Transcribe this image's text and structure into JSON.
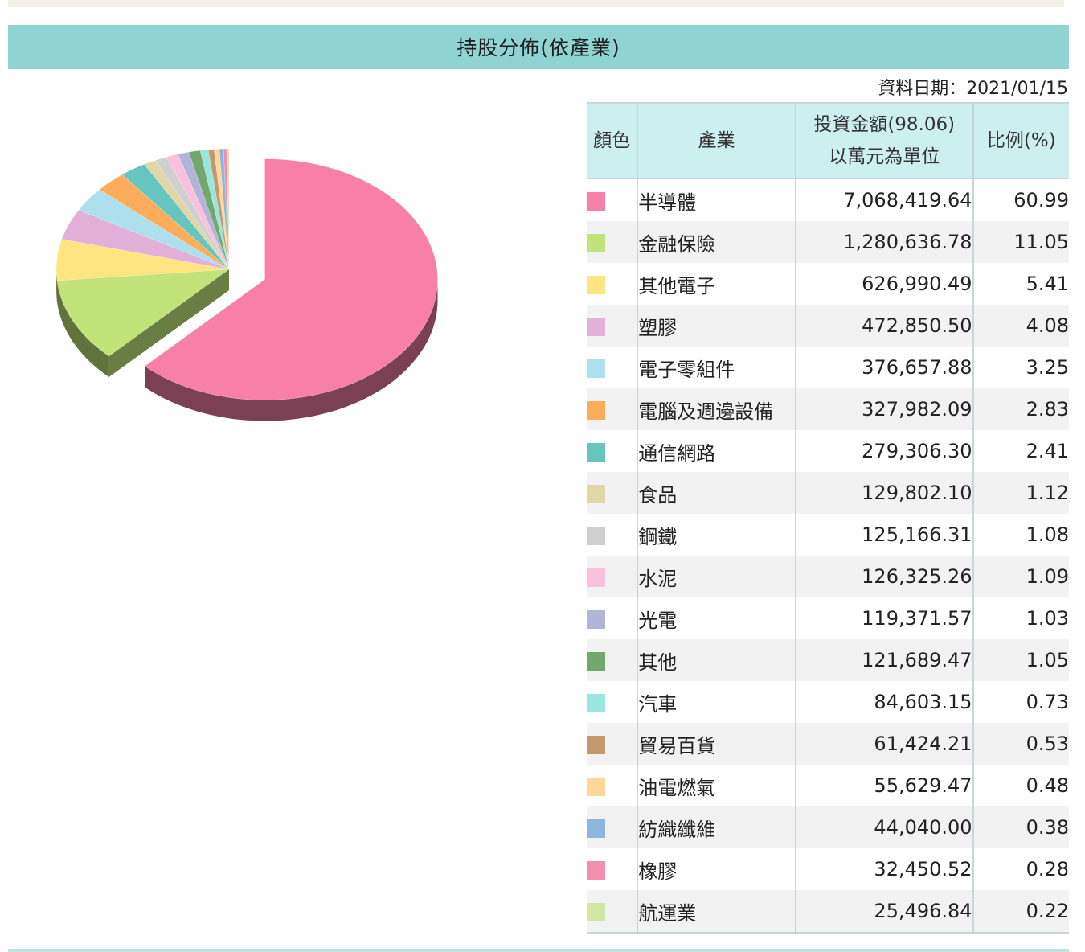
{
  "header": {
    "title": "持股分佈(依產業)"
  },
  "data_date": "資料日期：2021/01/15",
  "table": {
    "headers": {
      "color": "顏色",
      "industry": "產業",
      "amount_line1": "投資金額(98.06)",
      "amount_line2": "以萬元為單位",
      "percent": "比例(%)"
    },
    "rows": [
      {
        "industry": "半導體",
        "amount": "7,068,419.64",
        "percent": "60.99",
        "color": "#f77fa8"
      },
      {
        "industry": "金融保險",
        "amount": "1,280,636.78",
        "percent": "11.05",
        "color": "#c1e37a"
      },
      {
        "industry": "其他電子",
        "amount": "626,990.49",
        "percent": "5.41",
        "color": "#ffe482"
      },
      {
        "industry": "塑膠",
        "amount": "472,850.50",
        "percent": "4.08",
        "color": "#e2b0d8"
      },
      {
        "industry": "電子零組件",
        "amount": "376,657.88",
        "percent": "3.25",
        "color": "#ade0ec"
      },
      {
        "industry": "電腦及週邊設備",
        "amount": "327,982.09",
        "percent": "2.83",
        "color": "#fbad5c"
      },
      {
        "industry": "通信網路",
        "amount": "279,306.30",
        "percent": "2.41",
        "color": "#66c6bf"
      },
      {
        "industry": "食品",
        "amount": "129,802.10",
        "percent": "1.12",
        "color": "#e0d7a7"
      },
      {
        "industry": "鋼鐵",
        "amount": "125,166.31",
        "percent": "1.08",
        "color": "#cfcfcf"
      },
      {
        "industry": "水泥",
        "amount": "126,325.26",
        "percent": "1.09",
        "color": "#f9c0dd"
      },
      {
        "industry": "光電",
        "amount": "119,371.57",
        "percent": "1.03",
        "color": "#b2b5d6"
      },
      {
        "industry": "其他",
        "amount": "121,689.47",
        "percent": "1.05",
        "color": "#72a86d"
      },
      {
        "industry": "汽車",
        "amount": "84,603.15",
        "percent": "0.73",
        "color": "#98e6de"
      },
      {
        "industry": "貿易百貨",
        "amount": "61,424.21",
        "percent": "0.53",
        "color": "#c39a6e"
      },
      {
        "industry": "油電燃氣",
        "amount": "55,629.47",
        "percent": "0.48",
        "color": "#ffd79a"
      },
      {
        "industry": "紡織纖維",
        "amount": "44,040.00",
        "percent": "0.38",
        "color": "#8db6dc"
      },
      {
        "industry": "橡膠",
        "amount": "32,450.52",
        "percent": "0.28",
        "color": "#f38eb0"
      },
      {
        "industry": "航運業",
        "amount": "25,496.84",
        "percent": "0.22",
        "color": "#d2e6a5"
      }
    ]
  },
  "chart_data": {
    "type": "pie",
    "title": "",
    "style": "3d-exploded-first-slice",
    "categories": [
      "半導體",
      "金融保險",
      "其他電子",
      "塑膠",
      "電子零組件",
      "電腦及週邊設備",
      "通信網路",
      "食品",
      "鋼鐵",
      "水泥",
      "光電",
      "其他",
      "汽車",
      "貿易百貨",
      "油電燃氣",
      "紡織纖維",
      "橡膠",
      "航運業"
    ],
    "values": [
      60.99,
      11.05,
      5.41,
      4.08,
      3.25,
      2.83,
      2.41,
      1.12,
      1.08,
      1.09,
      1.03,
      1.05,
      0.73,
      0.53,
      0.48,
      0.38,
      0.28,
      0.22
    ],
    "colors": [
      "#f77fa8",
      "#c1e37a",
      "#ffe482",
      "#e2b0d8",
      "#ade0ec",
      "#fbad5c",
      "#66c6bf",
      "#e0d7a7",
      "#cfcfcf",
      "#f9c0dd",
      "#b2b5d6",
      "#72a86d",
      "#98e6de",
      "#c39a6e",
      "#ffd79a",
      "#8db6dc",
      "#f38eb0",
      "#d2e6a5"
    ]
  }
}
